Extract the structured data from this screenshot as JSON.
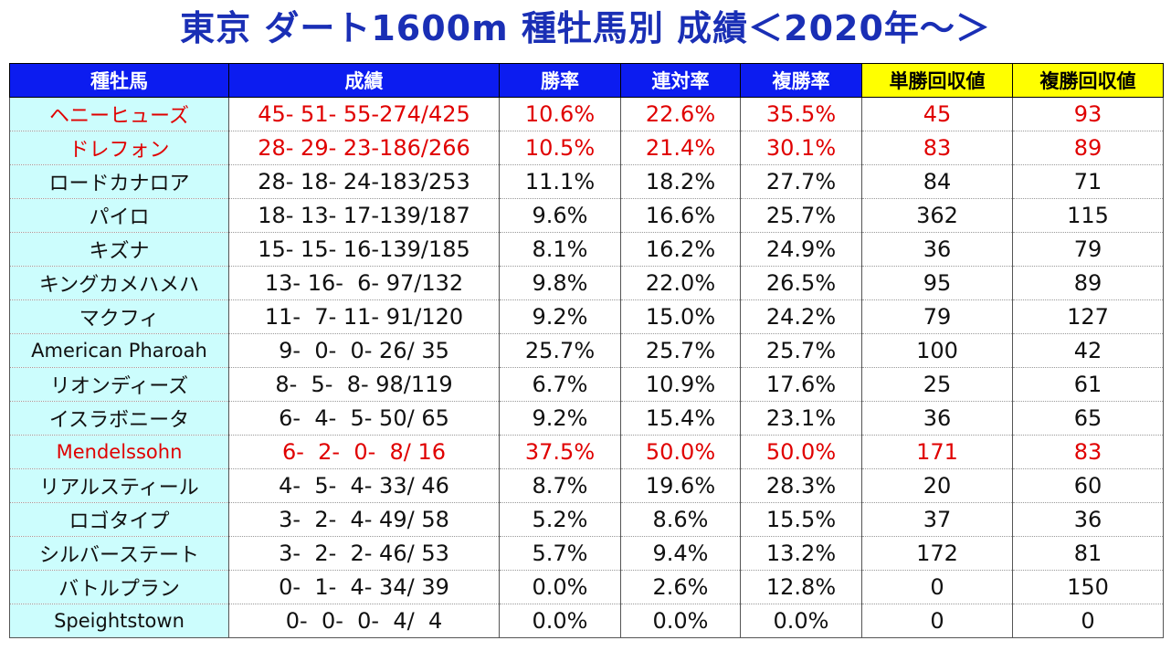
{
  "title": "東京 ダート1600m 種牡馬別 成績＜2020年～＞",
  "headers": [
    "種牡馬",
    "成績",
    "勝率",
    "連対率",
    "複勝率",
    "単勝回収値",
    "複勝回収値"
  ],
  "colors": {
    "title": "#1a2fb5",
    "header_blue": "#0c1cf0",
    "header_yellow": "#ffff00",
    "name_cell": "#ccfdfd",
    "highlight_text": "#e00000"
  },
  "rows": [
    {
      "name": "ヘニーヒューズ",
      "record": "45- 51- 55-274/425",
      "win": "10.6%",
      "quinella": "22.6%",
      "place": "35.5%",
      "win_return": "45",
      "place_return": "93",
      "highlight": true
    },
    {
      "name": "ドレフォン",
      "record": "28- 29- 23-186/266",
      "win": "10.5%",
      "quinella": "21.4%",
      "place": "30.1%",
      "win_return": "83",
      "place_return": "89",
      "highlight": true
    },
    {
      "name": "ロードカナロア",
      "record": "28- 18- 24-183/253",
      "win": "11.1%",
      "quinella": "18.2%",
      "place": "27.7%",
      "win_return": "84",
      "place_return": "71",
      "highlight": false
    },
    {
      "name": "パイロ",
      "record": "18- 13- 17-139/187",
      "win": "9.6%",
      "quinella": "16.6%",
      "place": "25.7%",
      "win_return": "362",
      "place_return": "115",
      "highlight": false
    },
    {
      "name": "キズナ",
      "record": "15- 15- 16-139/185",
      "win": "8.1%",
      "quinella": "16.2%",
      "place": "24.9%",
      "win_return": "36",
      "place_return": "79",
      "highlight": false
    },
    {
      "name": "キングカメハメハ",
      "record": "13- 16-  6- 97/132",
      "win": "9.8%",
      "quinella": "22.0%",
      "place": "26.5%",
      "win_return": "95",
      "place_return": "89",
      "highlight": false
    },
    {
      "name": "マクフィ",
      "record": "11-  7- 11- 91/120",
      "win": "9.2%",
      "quinella": "15.0%",
      "place": "24.2%",
      "win_return": "79",
      "place_return": "127",
      "highlight": false
    },
    {
      "name": "American Pharoah",
      "record": "9-  0-  0- 26/ 35",
      "win": "25.7%",
      "quinella": "25.7%",
      "place": "25.7%",
      "win_return": "100",
      "place_return": "42",
      "highlight": false
    },
    {
      "name": "リオンディーズ",
      "record": "8-  5-  8- 98/119",
      "win": "6.7%",
      "quinella": "10.9%",
      "place": "17.6%",
      "win_return": "25",
      "place_return": "61",
      "highlight": false
    },
    {
      "name": "イスラボニータ",
      "record": "6-  4-  5- 50/ 65",
      "win": "9.2%",
      "quinella": "15.4%",
      "place": "23.1%",
      "win_return": "36",
      "place_return": "65",
      "highlight": false
    },
    {
      "name": "Mendelssohn",
      "record": "6-  2-  0-  8/ 16",
      "win": "37.5%",
      "quinella": "50.0%",
      "place": "50.0%",
      "win_return": "171",
      "place_return": "83",
      "highlight": true
    },
    {
      "name": "リアルスティール",
      "record": "4-  5-  4- 33/ 46",
      "win": "8.7%",
      "quinella": "19.6%",
      "place": "28.3%",
      "win_return": "20",
      "place_return": "60",
      "highlight": false
    },
    {
      "name": "ロゴタイプ",
      "record": "3-  2-  4- 49/ 58",
      "win": "5.2%",
      "quinella": "8.6%",
      "place": "15.5%",
      "win_return": "37",
      "place_return": "36",
      "highlight": false
    },
    {
      "name": "シルバーステート",
      "record": "3-  2-  2- 46/ 53",
      "win": "5.7%",
      "quinella": "9.4%",
      "place": "13.2%",
      "win_return": "172",
      "place_return": "81",
      "highlight": false
    },
    {
      "name": "バトルプラン",
      "record": "0-  1-  4- 34/ 39",
      "win": "0.0%",
      "quinella": "2.6%",
      "place": "12.8%",
      "win_return": "0",
      "place_return": "150",
      "highlight": false
    },
    {
      "name": "Speightstown",
      "record": "0-  0-  0-  4/  4",
      "win": "0.0%",
      "quinella": "0.0%",
      "place": "0.0%",
      "win_return": "0",
      "place_return": "0",
      "highlight": false
    }
  ]
}
